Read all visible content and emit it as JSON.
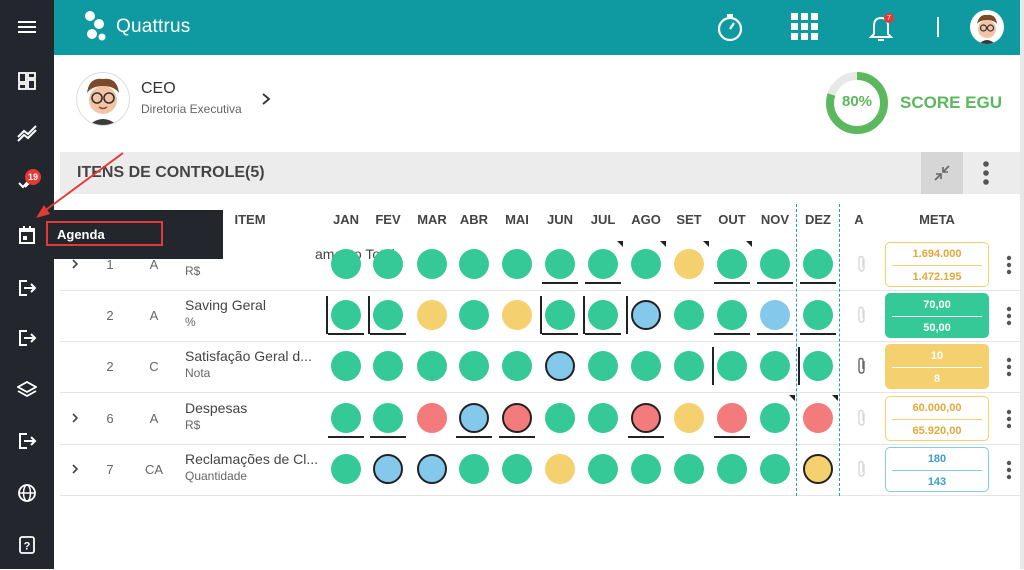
{
  "app": {
    "brand_name": "Quattrus",
    "accent_color": "#0f9aa2",
    "notification_count": "7"
  },
  "sidebar": {
    "items": [
      {
        "icon": "menu-icon"
      },
      {
        "icon": "dashboard-icon"
      },
      {
        "icon": "trend-icon"
      },
      {
        "icon": "checks-icon",
        "badge": "19"
      },
      {
        "icon": "calendar-icon"
      },
      {
        "icon": "exit-icon"
      },
      {
        "icon": "exit-icon"
      },
      {
        "icon": "layers-icon"
      },
      {
        "icon": "exit-icon"
      },
      {
        "icon": "globe-icon"
      },
      {
        "icon": "help-icon"
      }
    ],
    "tooltip": "Agenda"
  },
  "profile": {
    "role": "CEO",
    "department": "Diretoria Executiva"
  },
  "score": {
    "percent_label": "80%",
    "percent_value": 80,
    "label": "SCORE EGU"
  },
  "section": {
    "title": "ITENS DE CONTROLE(5)"
  },
  "table": {
    "columns": {
      "item": "ITEM",
      "attachment": "A",
      "meta": "META",
      "months": [
        "JAN",
        "FEV",
        "MAR",
        "ABR",
        "MAI",
        "JUN",
        "JUL",
        "AGO",
        "SET",
        "OUT",
        "NOV",
        "DEZ"
      ]
    },
    "rows": [
      {
        "expandable": true,
        "num": "1",
        "type": "A",
        "name": "Faturamento Total",
        "name_visible": "amento Total",
        "unit": "R$",
        "meta_top": "1.694.000",
        "meta_bottom": "1.472.195",
        "meta_style": "yellow-outline",
        "months": [
          "green",
          "green",
          "green",
          "green",
          "green",
          "green",
          "green",
          "green",
          "yellow",
          "green",
          "green",
          "green"
        ]
      },
      {
        "expandable": false,
        "num": "2",
        "type": "A",
        "name": "Saving Geral",
        "unit": "%",
        "meta_top": "70,00",
        "meta_bottom": "50,00",
        "meta_style": "green-filled",
        "months": [
          "green",
          "green",
          "yellow",
          "green",
          "yellow",
          "green",
          "green",
          "blue",
          "green",
          "green",
          "blue",
          "green"
        ]
      },
      {
        "expandable": false,
        "num": "2",
        "type": "C",
        "name": "Satisfação Geral d...",
        "unit": "Nota",
        "meta_top": "10",
        "meta_bottom": "8",
        "meta_style": "yellow-filled",
        "months": [
          "green",
          "green",
          "green",
          "green",
          "green",
          "blue",
          "green",
          "green",
          "green",
          "green",
          "green",
          "green"
        ]
      },
      {
        "expandable": true,
        "num": "6",
        "type": "A",
        "name": "Despesas",
        "unit": "R$",
        "meta_top": "60.000,00",
        "meta_bottom": "65.920,00",
        "meta_style": "yellow-outline",
        "months": [
          "green",
          "green",
          "red",
          "blue",
          "red",
          "green",
          "green",
          "red",
          "yellow",
          "red",
          "green",
          "red"
        ]
      },
      {
        "expandable": true,
        "num": "7",
        "type": "CA",
        "name": "Reclamações de Cl...",
        "unit": "Quantidade",
        "meta_top": "180",
        "meta_bottom": "143",
        "meta_style": "blue-outline",
        "months": [
          "green",
          "blue",
          "blue",
          "green",
          "green",
          "yellow",
          "green",
          "green",
          "green",
          "green",
          "green",
          "yellow"
        ]
      }
    ]
  },
  "colors": {
    "green": "#34c997",
    "yellow": "#f5d06e",
    "red": "#f47b7b",
    "blue": "#84c8ec"
  }
}
